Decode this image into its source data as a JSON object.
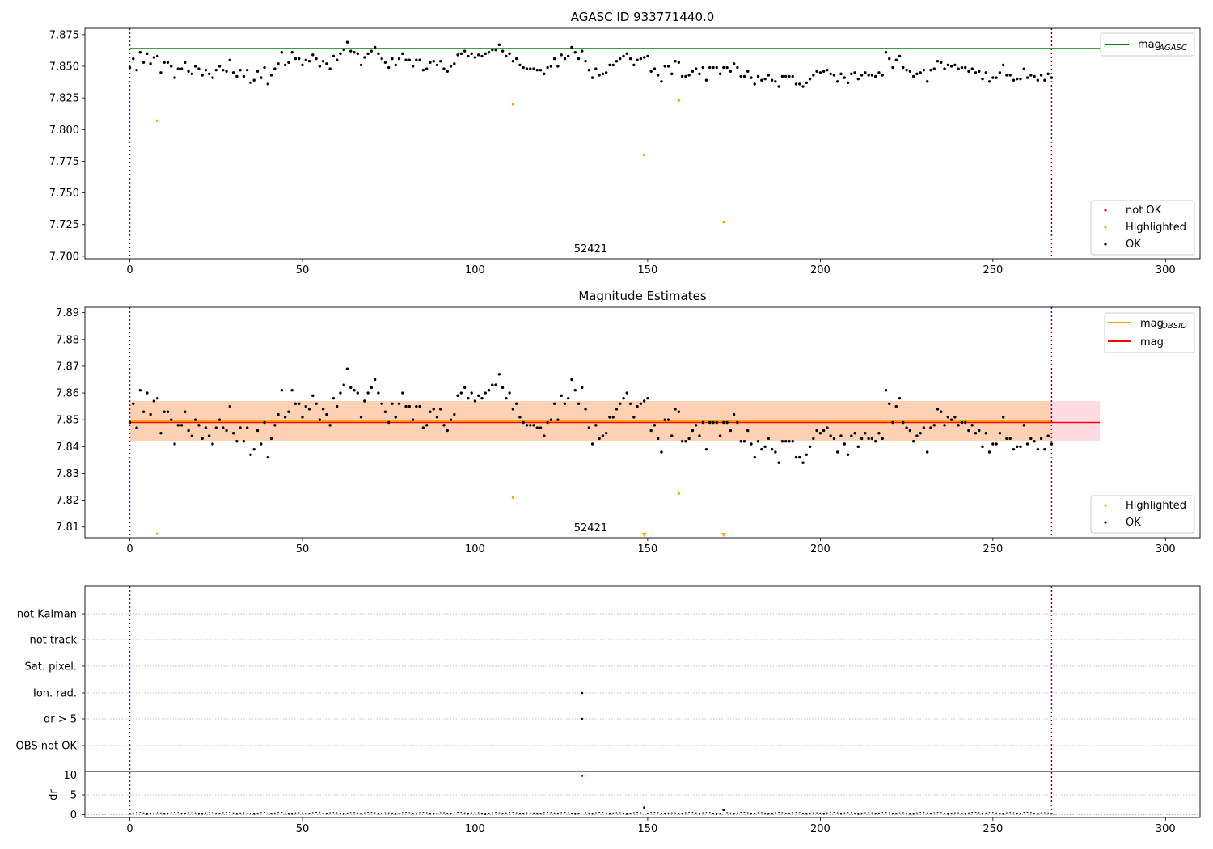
{
  "chart_data": [
    {
      "type": "scatter",
      "title": "AGASC ID 933771440.0",
      "xlim": [
        -13,
        310
      ],
      "ylim": [
        7.698,
        7.88
      ],
      "xticks": [
        0,
        50,
        100,
        150,
        200,
        250,
        300
      ],
      "yticks": [
        7.7,
        7.725,
        7.75,
        7.775,
        7.8,
        7.825,
        7.85,
        7.875
      ],
      "ytick_labels": [
        "7.700",
        "7.725",
        "7.750",
        "7.775",
        "7.800",
        "7.825",
        "7.850",
        "7.875"
      ],
      "vlines": [
        0,
        267
      ],
      "hline": {
        "y": 7.864,
        "x_end": 281,
        "color": "#008000",
        "label": "mag",
        "label_sub": "AGASC"
      },
      "obsid_label": {
        "text": "52421",
        "x": 133.5
      },
      "legend_top": "top-right",
      "legend_bottom": "bottom-right",
      "legend_bottom_items": [
        {
          "label": "not OK",
          "color": "#ff0000"
        },
        {
          "label": "Highlighted",
          "color": "#ffa500"
        },
        {
          "label": "OK",
          "color": "#000000"
        }
      ],
      "highlighted_points": [
        [
          8,
          7.807
        ],
        [
          111,
          7.82
        ],
        [
          149,
          7.78
        ],
        [
          159,
          7.823
        ],
        [
          172,
          7.727
        ]
      ],
      "ok_series": [
        7.849,
        7.856,
        7.847,
        7.861,
        7.853,
        7.86,
        7.852,
        7.857,
        7.858,
        7.845,
        7.853,
        7.853,
        7.85,
        7.841,
        7.848,
        7.848,
        7.853,
        7.846,
        7.844,
        7.85,
        7.848,
        7.843,
        7.847,
        7.844,
        7.841,
        7.847,
        7.85,
        7.847,
        7.846,
        7.855,
        7.845,
        7.842,
        7.847,
        7.842,
        7.847,
        7.837,
        7.839,
        7.846,
        7.841,
        7.849,
        7.836,
        7.843,
        7.848,
        7.852,
        7.861,
        7.851,
        7.853,
        7.861,
        7.856,
        7.856,
        7.851,
        7.855,
        7.854,
        7.859,
        7.856,
        7.85,
        7.854,
        7.852,
        7.848,
        7.858,
        7.855,
        7.86,
        7.863,
        7.869,
        7.862,
        7.861,
        7.86,
        7.851,
        7.857,
        7.86,
        7.862,
        7.865,
        7.86,
        7.856,
        7.853,
        7.849,
        7.856,
        7.851,
        7.856,
        7.86,
        7.855,
        7.855,
        7.85,
        7.855,
        7.855,
        7.847,
        7.848,
        7.853,
        7.854,
        7.851,
        7.854,
        7.848,
        7.846,
        7.85,
        7.852,
        7.859,
        7.86,
        7.862,
        7.858,
        7.86,
        7.857,
        7.859,
        7.858,
        7.86,
        7.861,
        7.863,
        7.863,
        7.867,
        7.862,
        7.858,
        7.86,
        7.854,
        7.856,
        7.851,
        7.849,
        7.848,
        7.848,
        7.848,
        7.847,
        7.847,
        7.844,
        7.849,
        7.85,
        7.856,
        7.85,
        7.859,
        7.856,
        7.858,
        7.865,
        7.861,
        7.856,
        7.862,
        7.854,
        7.847,
        7.841,
        7.848,
        7.843,
        7.844,
        7.845,
        7.851,
        7.851,
        7.854,
        7.856,
        7.858,
        7.86,
        7.856,
        7.851,
        7.855,
        7.856,
        7.857,
        7.858,
        7.846,
        7.848,
        7.843,
        7.838,
        7.85,
        7.85,
        7.844,
        7.854,
        7.853,
        7.842,
        7.842,
        7.843,
        7.846,
        7.848,
        7.844,
        7.849,
        7.839,
        7.849,
        7.849,
        7.849,
        7.844,
        7.849,
        7.849,
        7.846,
        7.852,
        7.849,
        7.842,
        7.842,
        7.846,
        7.841,
        7.836,
        7.842,
        7.839,
        7.84,
        7.843,
        7.839,
        7.838,
        7.834,
        7.842,
        7.842,
        7.842,
        7.842,
        7.836,
        7.836,
        7.834,
        7.837,
        7.84,
        7.843,
        7.846,
        7.845,
        7.846,
        7.847,
        7.844,
        7.843,
        7.838,
        7.844,
        7.841,
        7.837,
        7.844,
        7.845,
        7.84,
        7.843,
        7.845,
        7.843,
        7.843,
        7.842,
        7.845,
        7.843,
        7.861,
        7.856,
        7.849,
        7.855,
        7.858,
        7.849,
        7.847,
        7.846,
        7.842,
        7.844,
        7.845,
        7.847,
        7.838,
        7.847,
        7.848,
        7.854,
        7.853,
        7.848,
        7.851,
        7.85,
        7.851,
        7.848,
        7.849,
        7.849,
        7.846,
        7.848,
        7.845,
        7.846,
        7.84,
        7.845,
        7.838,
        7.841,
        7.841,
        7.845,
        7.851,
        7.843,
        7.843,
        7.839,
        7.84,
        7.84,
        7.848,
        7.841,
        7.843,
        7.842,
        7.839,
        7.843,
        7.839,
        7.844,
        7.841
      ]
    },
    {
      "type": "scatter",
      "title": "Magnitude Estimates",
      "xlim": [
        -13,
        310
      ],
      "ylim": [
        7.806,
        7.892
      ],
      "xticks": [
        0,
        50,
        100,
        150,
        200,
        250,
        300
      ],
      "yticks": [
        7.81,
        7.82,
        7.83,
        7.84,
        7.85,
        7.86,
        7.87,
        7.88,
        7.89
      ],
      "ytick_labels": [
        "7.81",
        "7.82",
        "7.83",
        "7.84",
        "7.85",
        "7.86",
        "7.87",
        "7.88",
        "7.89"
      ],
      "vlines": [
        0,
        267
      ],
      "mag_band": [
        7.842,
        7.857
      ],
      "mag_line": {
        "y": 7.849,
        "x_end": 281,
        "color": "#ff0000",
        "label": "mag"
      },
      "mag_obsid_line": {
        "y": 7.8495,
        "x_end": 267,
        "color": "#ffa500",
        "label": "mag",
        "label_sub": "OBSID"
      },
      "obsid_label": {
        "text": "52421",
        "x": 133.5
      },
      "legend_top": "top-right",
      "legend_bottom": "bottom-right",
      "legend_bottom_items": [
        {
          "label": "Highlighted",
          "color": "#ffa500"
        },
        {
          "label": "OK",
          "color": "#000000"
        }
      ],
      "highlighted_points": [
        [
          8,
          7.8075
        ],
        [
          111,
          7.821
        ],
        [
          159,
          7.8225
        ]
      ],
      "highlighted_off_scale": [
        149,
        172
      ],
      "ok_series_ref": "same as panel 1"
    },
    {
      "type": "scatter",
      "title": "",
      "xlim": [
        -13,
        310
      ],
      "xticks": [
        0,
        50,
        100,
        150,
        200,
        250,
        300
      ],
      "vlines": [
        0,
        267
      ],
      "flag_rows": [
        "not Kalman",
        "not track",
        "Sat. pixel.",
        "Ion. rad.",
        "dr > 5",
        "OBS not OK"
      ],
      "flag_points": [
        {
          "row": "Ion. rad.",
          "x": 131
        },
        {
          "row": "dr > 5",
          "x": 131
        }
      ],
      "dr_ylabel": "dr",
      "dr_yticks": [
        0,
        5,
        10
      ],
      "dr_ytick_labels": [
        "0",
        "5",
        "10"
      ],
      "dr_ylim": [
        -0.5,
        10.5
      ],
      "dr_high_points": [
        [
          131,
          9.8,
          "#ff0000"
        ],
        [
          149,
          1.8,
          "#000000"
        ],
        [
          172,
          1.2,
          "#000000"
        ]
      ]
    }
  ]
}
